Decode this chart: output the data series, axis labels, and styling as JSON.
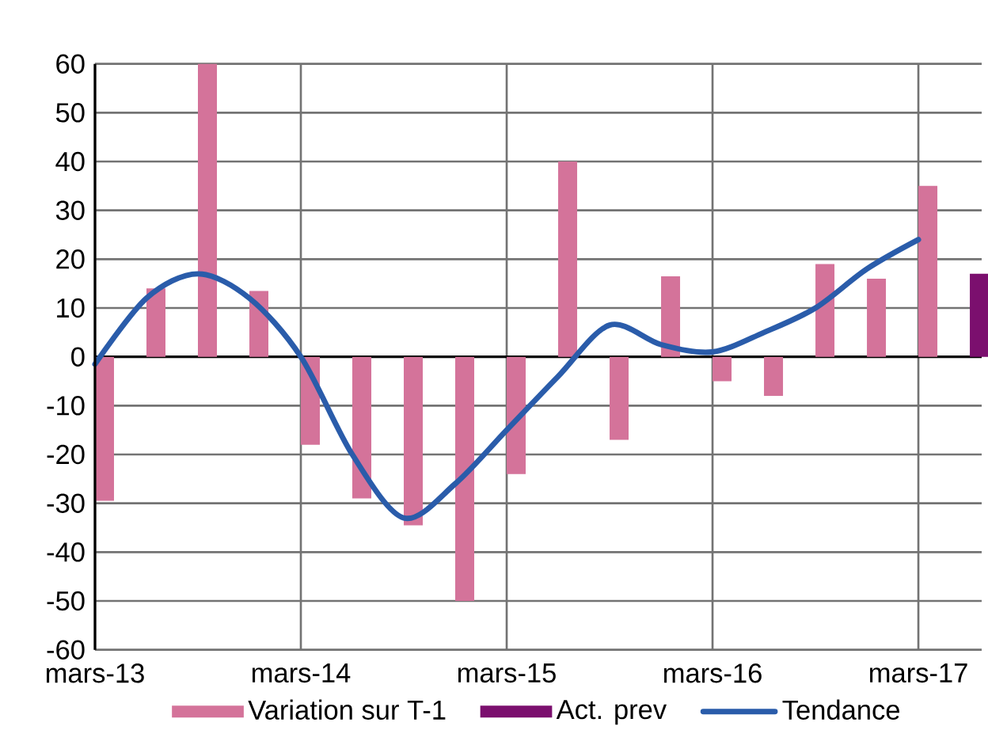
{
  "chart_data": {
    "type": "bar",
    "categories": [
      "mars-13",
      null,
      null,
      null,
      "mars-14",
      null,
      null,
      null,
      "mars-15",
      null,
      null,
      null,
      "mars-16",
      null,
      null,
      null,
      "mars-17",
      null
    ],
    "series": [
      {
        "name": "Variation sur T-1",
        "color": "#d4739a",
        "values": [
          -29.5,
          14,
          60,
          13.5,
          -18,
          -29,
          -34.5,
          -50,
          -24,
          40,
          -17,
          16.5,
          -5,
          -8,
          19,
          16,
          35,
          null
        ]
      },
      {
        "name": "Act. prev",
        "color": "#7b0f6e",
        "values": [
          null,
          null,
          null,
          null,
          null,
          null,
          null,
          null,
          null,
          null,
          null,
          null,
          null,
          null,
          null,
          null,
          null,
          17
        ]
      },
      {
        "name": "Tendance",
        "type": "line",
        "color": "#2a5caa",
        "values": [
          -1.5,
          12,
          17,
          12,
          0,
          -20,
          -33,
          -26,
          -15,
          -4,
          6.5,
          2.5,
          1,
          5,
          10,
          18,
          24,
          null
        ]
      }
    ],
    "ylim": [
      -60,
      60
    ],
    "yticks": [
      -60,
      -50,
      -40,
      -30,
      -20,
      -10,
      0,
      10,
      20,
      30,
      40,
      50,
      60
    ],
    "grid": true,
    "legend": "bottom",
    "marker": "none"
  }
}
